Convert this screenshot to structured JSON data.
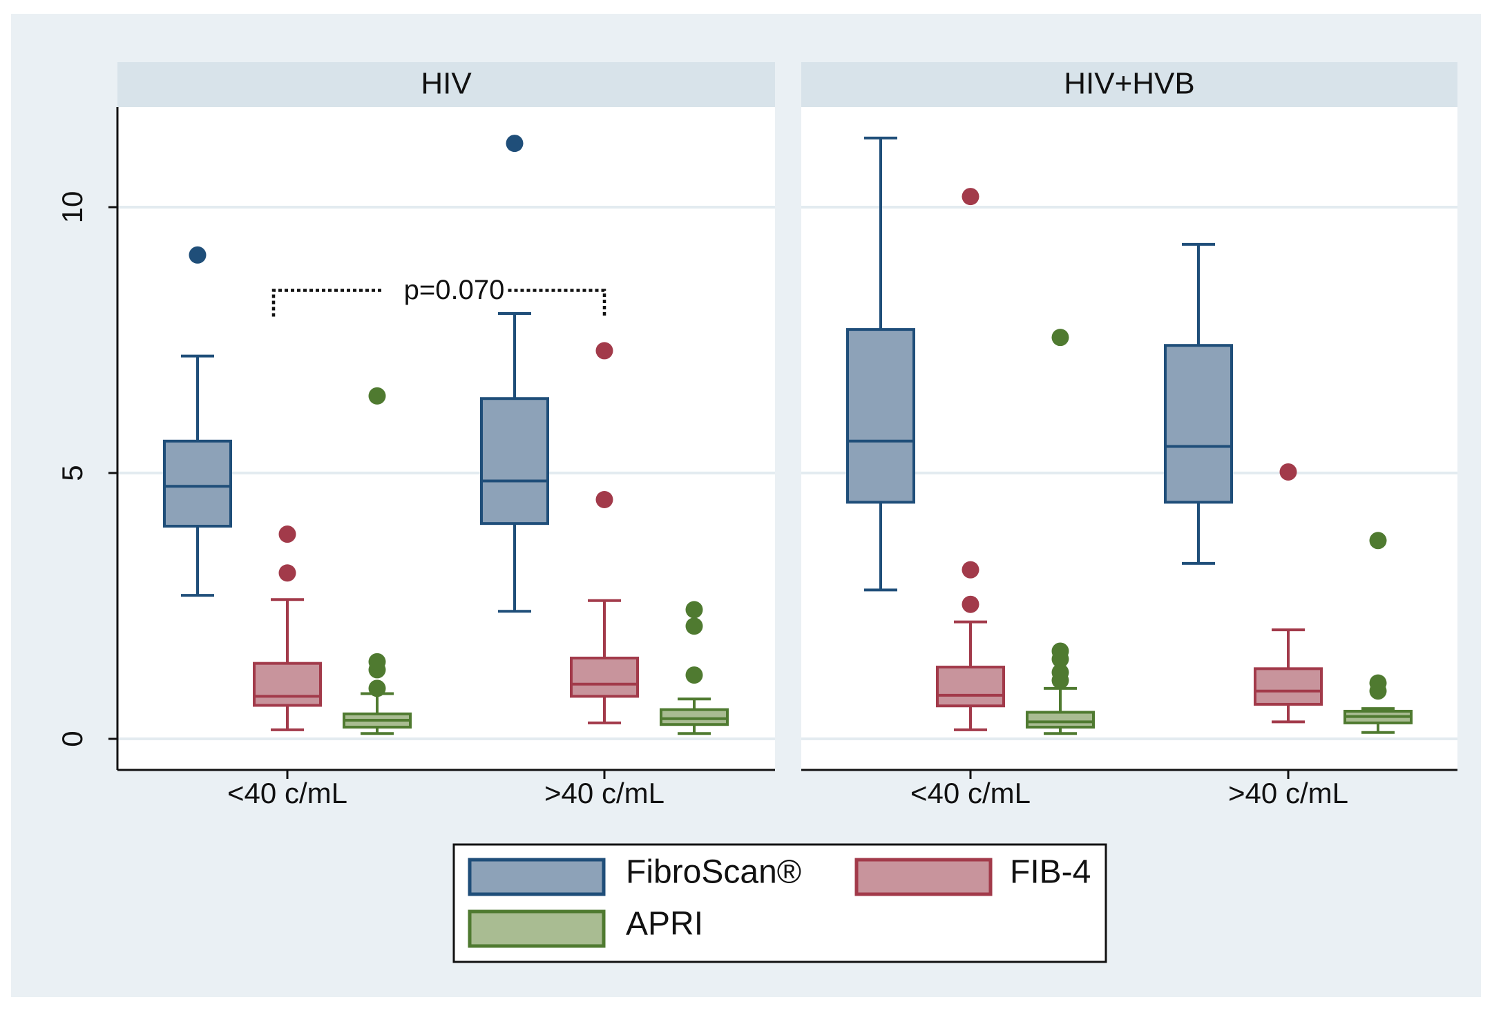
{
  "chart_data": {
    "type": "boxplot",
    "panels": [
      {
        "title": "HIV",
        "groups": [
          {
            "label": "<40 c/mL",
            "boxes": [
              {
                "series": "FibroScan®",
                "whisker_low": 2.7,
                "q1": 4.0,
                "median": 4.75,
                "q3": 5.6,
                "whisker_high": 7.2,
                "outliers": [
                  9.1
                ]
              },
              {
                "series": "FIB-4",
                "whisker_low": 0.17,
                "q1": 0.63,
                "median": 0.8,
                "q3": 1.42,
                "whisker_high": 2.62,
                "outliers": [
                  3.12,
                  3.85
                ]
              },
              {
                "series": "APRI",
                "whisker_low": 0.1,
                "q1": 0.22,
                "median": 0.35,
                "q3": 0.47,
                "whisker_high": 0.85,
                "outliers": [
                  0.95,
                  1.3,
                  1.45,
                  6.45
                ]
              }
            ]
          },
          {
            "label": ">40 c/mL",
            "boxes": [
              {
                "series": "FibroScan®",
                "whisker_low": 2.4,
                "q1": 4.05,
                "median": 4.85,
                "q3": 6.4,
                "whisker_high": 8.0,
                "outliers": [
                  11.2
                ]
              },
              {
                "series": "FIB-4",
                "whisker_low": 0.3,
                "q1": 0.8,
                "median": 1.03,
                "q3": 1.52,
                "whisker_high": 2.6,
                "outliers": [
                  4.5,
                  7.3
                ]
              },
              {
                "series": "APRI",
                "whisker_low": 0.1,
                "q1": 0.27,
                "median": 0.38,
                "q3": 0.55,
                "whisker_high": 0.75,
                "outliers": [
                  1.2,
                  2.12,
                  2.43
                ]
              }
            ]
          }
        ],
        "annotation": {
          "text": "p=0.070",
          "y": 8.5,
          "from_group": 0,
          "to_group": 1
        }
      },
      {
        "title": "HIV+HVB",
        "groups": [
          {
            "label": "<40 c/mL",
            "boxes": [
              {
                "series": "FibroScan®",
                "whisker_low": 2.8,
                "q1": 4.45,
                "median": 5.6,
                "q3": 7.7,
                "whisker_high": 11.3,
                "outliers": []
              },
              {
                "series": "FIB-4",
                "whisker_low": 0.17,
                "q1": 0.62,
                "median": 0.82,
                "q3": 1.35,
                "whisker_high": 2.2,
                "outliers": [
                  2.53,
                  3.18,
                  10.2
                ]
              },
              {
                "series": "APRI",
                "whisker_low": 0.1,
                "q1": 0.22,
                "median": 0.32,
                "q3": 0.5,
                "whisker_high": 0.95,
                "outliers": [
                  1.1,
                  1.25,
                  1.5,
                  1.65,
                  7.55
                ]
              }
            ]
          },
          {
            "label": ">40 c/mL",
            "boxes": [
              {
                "series": "FibroScan®",
                "whisker_low": 3.3,
                "q1": 4.45,
                "median": 5.5,
                "q3": 7.4,
                "whisker_high": 9.3,
                "outliers": []
              },
              {
                "series": "FIB-4",
                "whisker_low": 0.32,
                "q1": 0.65,
                "median": 0.9,
                "q3": 1.32,
                "whisker_high": 2.05,
                "outliers": [
                  5.02
                ]
              },
              {
                "series": "APRI",
                "whisker_low": 0.12,
                "q1": 0.3,
                "median": 0.42,
                "q3": 0.52,
                "whisker_high": 0.57,
                "outliers": [
                  0.9,
                  1.05,
                  3.73
                ]
              }
            ]
          }
        ]
      }
    ],
    "series": [
      {
        "name": "FibroScan®",
        "fill": "#8da2b8",
        "stroke": "#1f4e79"
      },
      {
        "name": "FIB-4",
        "fill": "#c8949c",
        "stroke": "#a23a4a"
      },
      {
        "name": "APRI",
        "fill": "#a9bc92",
        "stroke": "#4f7a30"
      }
    ],
    "y_axis": {
      "ticks": [
        0,
        5,
        10
      ],
      "tick_labels": [
        "0",
        "5",
        "10"
      ],
      "ylim": [
        -0.6,
        11.8
      ]
    },
    "grid": true,
    "legend": {
      "position": "bottom",
      "entries": [
        "FibroScan®",
        "FIB-4",
        "APRI"
      ]
    }
  }
}
